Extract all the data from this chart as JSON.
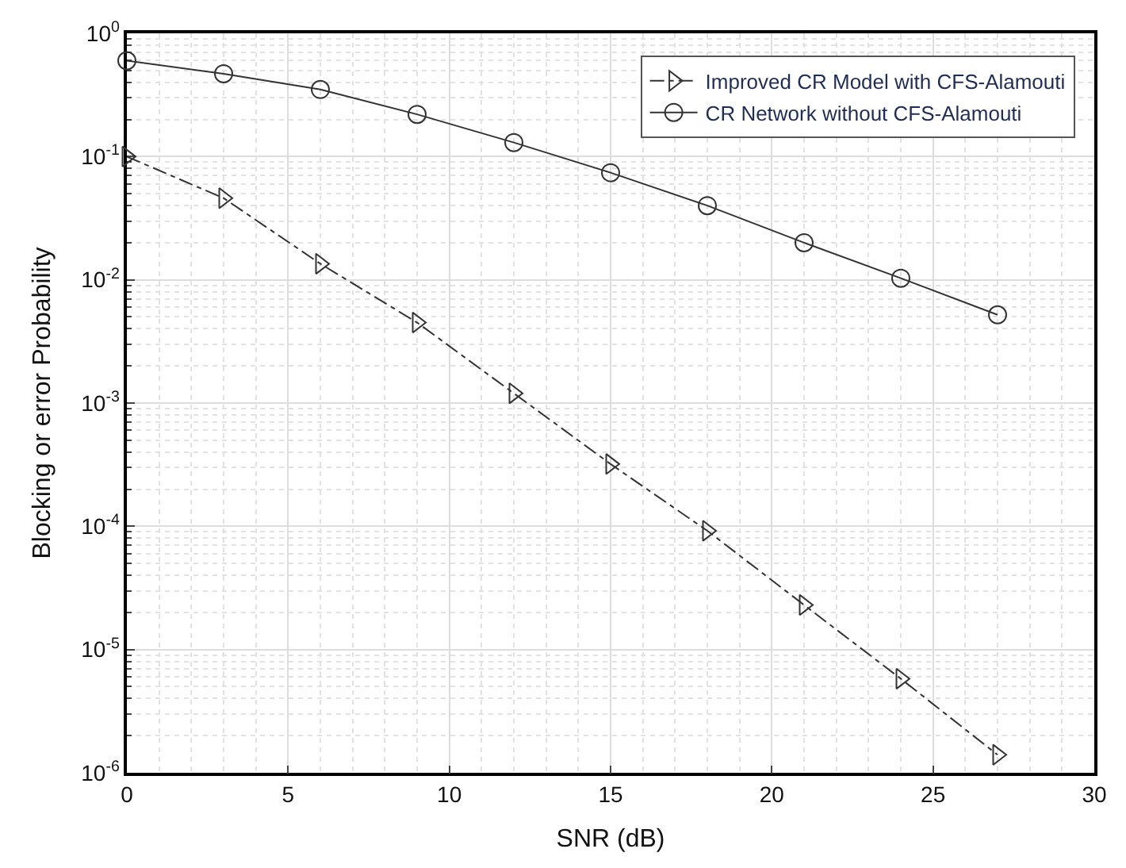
{
  "chart_data": {
    "type": "line",
    "xlabel": "SNR (dB)",
    "ylabel": "Blocking or error Probability",
    "x": [
      0,
      3,
      6,
      9,
      12,
      15,
      18,
      21,
      24,
      27
    ],
    "series": [
      {
        "name": "Improved CR Model with CFS-Alamouti",
        "color": "#333333",
        "marker": "triangle",
        "line_style": "dashdot",
        "values": [
          0.1,
          0.046,
          0.0135,
          0.0045,
          0.0012,
          0.00032,
          9.2e-05,
          2.3e-05,
          5.8e-06,
          1.4e-06
        ]
      },
      {
        "name": "CR Network without CFS-Alamouti",
        "color": "#333333",
        "marker": "circle",
        "line_style": "solid",
        "values": [
          0.6,
          0.47,
          0.35,
          0.22,
          0.13,
          0.074,
          0.04,
          0.02,
          0.0103,
          0.0052
        ]
      }
    ],
    "xlim": [
      0,
      30
    ],
    "xticks": [
      0,
      5,
      10,
      15,
      20,
      25,
      30
    ],
    "ylim": [
      1e-06,
      1
    ],
    "log": true,
    "yticks": [
      {
        "value": 1e-06,
        "label": "10$^{-6}$"
      },
      {
        "value": 1e-05,
        "label": "10$^{-5}$"
      },
      {
        "value": 0.0001,
        "label": "10$^{-4}$"
      },
      {
        "value": 0.001,
        "label": "10$^{-3}$"
      },
      {
        "value": 0.01,
        "label": "10$^{-2}$"
      },
      {
        "value": 0.1,
        "label": "10$^{-1}$"
      },
      {
        "value": 1,
        "label": "10$^{0}$"
      }
    ],
    "grid": true,
    "legend": "top right"
  }
}
